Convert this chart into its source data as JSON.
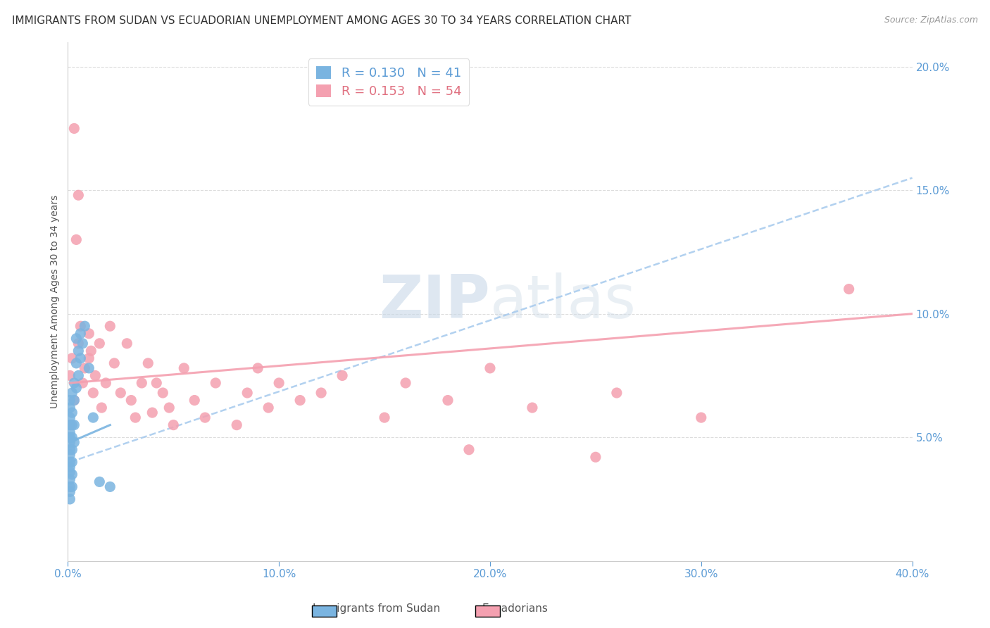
{
  "title": "IMMIGRANTS FROM SUDAN VS ECUADORIAN UNEMPLOYMENT AMONG AGES 30 TO 34 YEARS CORRELATION CHART",
  "source_text": "Source: ZipAtlas.com",
  "ylabel": "Unemployment Among Ages 30 to 34 years",
  "xlim": [
    0.0,
    0.4
  ],
  "ylim": [
    0.0,
    0.21
  ],
  "yticks": [
    0.05,
    0.1,
    0.15,
    0.2
  ],
  "ytick_labels": [
    "5.0%",
    "10.0%",
    "15.0%",
    "20.0%"
  ],
  "xticks": [
    0.0,
    0.1,
    0.2,
    0.3,
    0.4
  ],
  "xtick_labels": [
    "0.0%",
    "10.0%",
    "20.0%",
    "30.0%",
    "40.0%"
  ],
  "watermark": "ZIPatlas",
  "sudan_color": "#7ab4e0",
  "ecuador_color": "#f4a0b0",
  "background_color": "#ffffff",
  "grid_color": "#dddddd",
  "title_color": "#333333",
  "axis_label_color": "#555555",
  "tick_label_color": "#5b9bd5",
  "title_fontsize": 11,
  "axis_label_fontsize": 10,
  "sudan_points": [
    [
      0.001,
      0.065
    ],
    [
      0.001,
      0.062
    ],
    [
      0.001,
      0.058
    ],
    [
      0.001,
      0.055
    ],
    [
      0.001,
      0.052
    ],
    [
      0.001,
      0.05
    ],
    [
      0.001,
      0.048
    ],
    [
      0.001,
      0.045
    ],
    [
      0.001,
      0.043
    ],
    [
      0.001,
      0.04
    ],
    [
      0.001,
      0.038
    ],
    [
      0.001,
      0.036
    ],
    [
      0.001,
      0.033
    ],
    [
      0.001,
      0.03
    ],
    [
      0.001,
      0.028
    ],
    [
      0.001,
      0.025
    ],
    [
      0.002,
      0.068
    ],
    [
      0.002,
      0.06
    ],
    [
      0.002,
      0.055
    ],
    [
      0.002,
      0.05
    ],
    [
      0.002,
      0.045
    ],
    [
      0.002,
      0.04
    ],
    [
      0.002,
      0.035
    ],
    [
      0.002,
      0.03
    ],
    [
      0.003,
      0.072
    ],
    [
      0.003,
      0.065
    ],
    [
      0.003,
      0.055
    ],
    [
      0.003,
      0.048
    ],
    [
      0.004,
      0.09
    ],
    [
      0.004,
      0.08
    ],
    [
      0.004,
      0.07
    ],
    [
      0.005,
      0.085
    ],
    [
      0.005,
      0.075
    ],
    [
      0.006,
      0.092
    ],
    [
      0.006,
      0.082
    ],
    [
      0.007,
      0.088
    ],
    [
      0.008,
      0.095
    ],
    [
      0.01,
      0.078
    ],
    [
      0.012,
      0.058
    ],
    [
      0.015,
      0.032
    ],
    [
      0.02,
      0.03
    ]
  ],
  "ecuador_points": [
    [
      0.001,
      0.075
    ],
    [
      0.002,
      0.082
    ],
    [
      0.003,
      0.065
    ],
    [
      0.003,
      0.175
    ],
    [
      0.004,
      0.13
    ],
    [
      0.005,
      0.148
    ],
    [
      0.005,
      0.088
    ],
    [
      0.006,
      0.095
    ],
    [
      0.007,
      0.072
    ],
    [
      0.008,
      0.078
    ],
    [
      0.01,
      0.092
    ],
    [
      0.01,
      0.082
    ],
    [
      0.011,
      0.085
    ],
    [
      0.012,
      0.068
    ],
    [
      0.013,
      0.075
    ],
    [
      0.015,
      0.088
    ],
    [
      0.016,
      0.062
    ],
    [
      0.018,
      0.072
    ],
    [
      0.02,
      0.095
    ],
    [
      0.022,
      0.08
    ],
    [
      0.025,
      0.068
    ],
    [
      0.028,
      0.088
    ],
    [
      0.03,
      0.065
    ],
    [
      0.032,
      0.058
    ],
    [
      0.035,
      0.072
    ],
    [
      0.038,
      0.08
    ],
    [
      0.04,
      0.06
    ],
    [
      0.042,
      0.072
    ],
    [
      0.045,
      0.068
    ],
    [
      0.048,
      0.062
    ],
    [
      0.05,
      0.055
    ],
    [
      0.055,
      0.078
    ],
    [
      0.06,
      0.065
    ],
    [
      0.065,
      0.058
    ],
    [
      0.07,
      0.072
    ],
    [
      0.08,
      0.055
    ],
    [
      0.085,
      0.068
    ],
    [
      0.09,
      0.078
    ],
    [
      0.095,
      0.062
    ],
    [
      0.1,
      0.072
    ],
    [
      0.11,
      0.065
    ],
    [
      0.12,
      0.068
    ],
    [
      0.13,
      0.075
    ],
    [
      0.15,
      0.058
    ],
    [
      0.16,
      0.072
    ],
    [
      0.18,
      0.065
    ],
    [
      0.19,
      0.045
    ],
    [
      0.2,
      0.078
    ],
    [
      0.22,
      0.062
    ],
    [
      0.25,
      0.042
    ],
    [
      0.26,
      0.068
    ],
    [
      0.3,
      0.058
    ],
    [
      0.37,
      0.11
    ]
  ],
  "sudan_trend_x": [
    0.001,
    0.02
  ],
  "sudan_trend_y": [
    0.048,
    0.055
  ],
  "ecuador_trend_x": [
    0.001,
    0.4
  ],
  "ecuador_trend_y": [
    0.072,
    0.1
  ],
  "dashed_trend_x": [
    0.001,
    0.4
  ],
  "dashed_trend_y": [
    0.04,
    0.155
  ]
}
